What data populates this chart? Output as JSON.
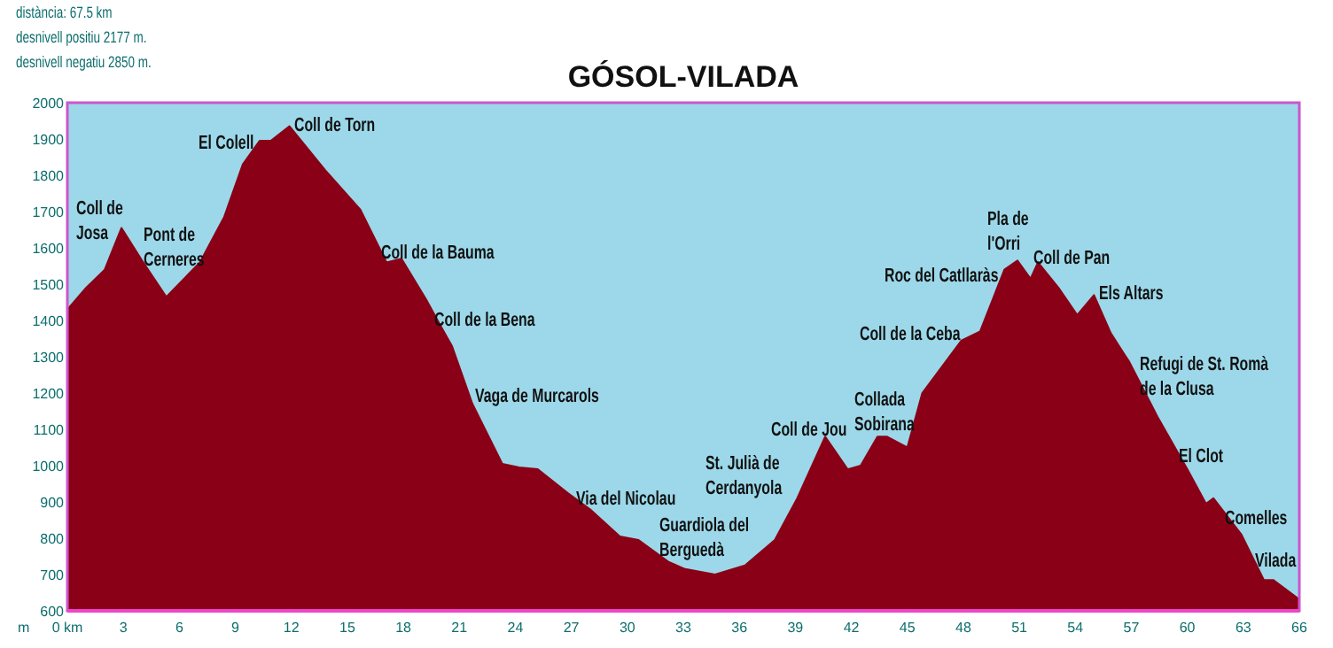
{
  "chart_data": {
    "type": "area",
    "title": "GÓSOL-VILADA",
    "ylabel": "m",
    "x": [
      0,
      1,
      2,
      2.9,
      4,
      5.3,
      7.1,
      8.4,
      9.4,
      10.3,
      10.9,
      11.9,
      13.8,
      15.7,
      17.1,
      17.9,
      19.2,
      20,
      20.6,
      21.7,
      23.3,
      24.2,
      25.2,
      26.8,
      28,
      29.6,
      30.6,
      32.2,
      33.1,
      34.7,
      36.3,
      37.9,
      39.1,
      40.6,
      41.8,
      42.5,
      43.4,
      43.9,
      45,
      45.8,
      47.9,
      48.9,
      50.2,
      50.9,
      51.6,
      52,
      53.1,
      54.1,
      55,
      55.9,
      56.9,
      58.4,
      60,
      61,
      61.4,
      62.9,
      64.1,
      64.6,
      65.9,
      66
    ],
    "values": [
      1430,
      1490,
      1540,
      1655,
      1565,
      1465,
      1560,
      1685,
      1830,
      1895,
      1895,
      1935,
      1815,
      1705,
      1560,
      1570,
      1460,
      1385,
      1330,
      1170,
      1005,
      995,
      990,
      925,
      880,
      805,
      795,
      735,
      715,
      700,
      725,
      795,
      910,
      1080,
      990,
      1000,
      1080,
      1080,
      1050,
      1200,
      1345,
      1370,
      1540,
      1565,
      1515,
      1560,
      1490,
      1415,
      1470,
      1365,
      1285,
      1135,
      990,
      895,
      910,
      810,
      685,
      685,
      635,
      630
    ],
    "color": "#8a0016",
    "xlim": [
      0,
      66
    ],
    "ylim": [
      600,
      2000
    ],
    "xticks": [
      {
        "value": 0,
        "label": "0 km"
      },
      3,
      6,
      9,
      12,
      15,
      18,
      21,
      24,
      27,
      30,
      33,
      36,
      39,
      42,
      45,
      48,
      51,
      54,
      57,
      60,
      63,
      66
    ],
    "yticks": [
      600,
      700,
      800,
      900,
      1000,
      1100,
      1200,
      1300,
      1400,
      1500,
      1600,
      1700,
      1800,
      1900,
      2000
    ],
    "grid": false,
    "annotations": [
      "distància: 67.5 km",
      "desnivell positiu 2177 m.",
      "desnivell negatiu 2850 m.",
      "Coll de\nJosa",
      "Pont de\nCerneres",
      "El Colell",
      "Coll de Torn",
      "Coll de la Bauma",
      "Coll de la Bena",
      "Vaga de Murcarols",
      "Via del Nicolau",
      "Guardiola del\nBerguedà",
      "St. Julià de\nCerdanyola",
      "Coll de Jou",
      "Collada\nSobirana",
      "Coll de la Ceba",
      "Roc del Catllaràs",
      "Pla de\nl'Orri",
      "Coll de Pan",
      "Els Altars",
      "Refugi de St. Romà\nde la Clusa",
      "El Clot",
      "Comelles",
      "Vilada"
    ]
  }
}
